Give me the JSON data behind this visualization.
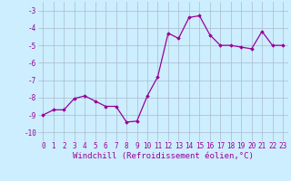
{
  "x": [
    0,
    1,
    2,
    3,
    4,
    5,
    6,
    7,
    8,
    9,
    10,
    11,
    12,
    13,
    14,
    15,
    16,
    17,
    18,
    19,
    20,
    21,
    22,
    23
  ],
  "y": [
    -9.0,
    -8.7,
    -8.7,
    -8.05,
    -7.9,
    -8.2,
    -8.5,
    -8.5,
    -9.4,
    -9.35,
    -7.9,
    -6.8,
    -4.3,
    -4.6,
    -3.4,
    -3.3,
    -4.4,
    -5.0,
    -5.0,
    -5.1,
    -5.2,
    -4.2,
    -5.0,
    -5.0
  ],
  "line_color": "#990099",
  "marker": "D",
  "marker_size": 1.8,
  "linewidth": 0.9,
  "bg_color": "#cceeff",
  "grid_color": "#aabbcc",
  "xlabel": "Windchill (Refroidissement éolien,°C)",
  "xlabel_color": "#990099",
  "xlabel_fontsize": 6.5,
  "tick_color": "#990099",
  "tick_fontsize": 5.5,
  "ylim": [
    -10.5,
    -2.5
  ],
  "xlim": [
    -0.5,
    23.5
  ],
  "yticks": [
    -10,
    -9,
    -8,
    -7,
    -6,
    -5,
    -4,
    -3
  ],
  "ytick_labels": [
    "-10",
    "-9",
    "-8",
    "-7",
    "-6",
    "-5",
    "-4",
    "-3"
  ],
  "xticks": [
    0,
    1,
    2,
    3,
    4,
    5,
    6,
    7,
    8,
    9,
    10,
    11,
    12,
    13,
    14,
    15,
    16,
    17,
    18,
    19,
    20,
    21,
    22,
    23
  ]
}
